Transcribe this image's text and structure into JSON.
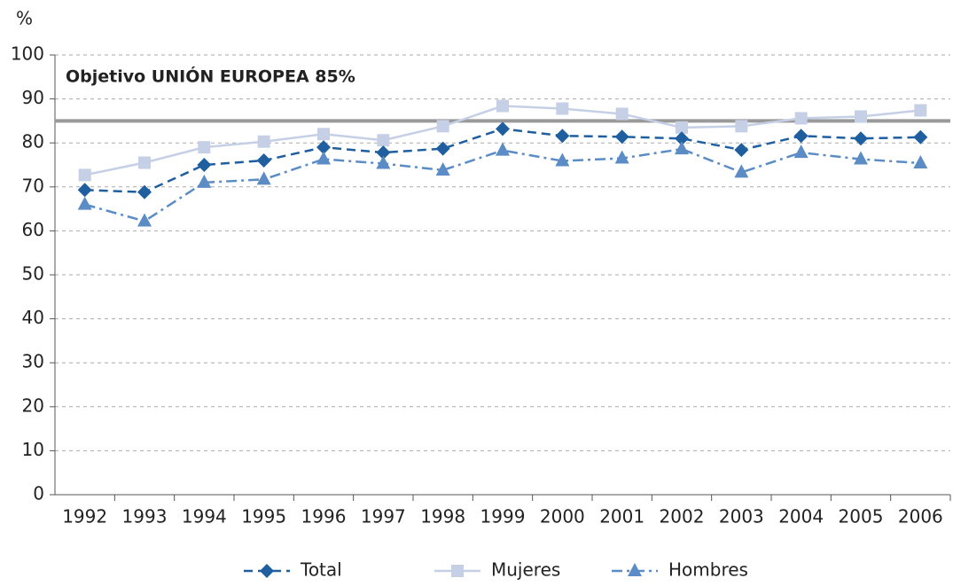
{
  "chart_data": {
    "type": "line",
    "y_label": "%",
    "categories": [
      "1992",
      "1993",
      "1994",
      "1995",
      "1996",
      "1997",
      "1998",
      "1999",
      "2000",
      "2001",
      "2002",
      "2003",
      "2004",
      "2005",
      "2006"
    ],
    "series": [
      {
        "name": "Total",
        "color": "#1f5fa0",
        "marker": "diamond",
        "dash": "10,6",
        "values": [
          69.3,
          68.8,
          75.0,
          76.0,
          79.0,
          77.8,
          78.7,
          83.2,
          81.6,
          81.4,
          81.0,
          78.4,
          81.6,
          81.0,
          81.3
        ]
      },
      {
        "name": "Mujeres",
        "color": "#c5d0e6",
        "marker": "square",
        "dash": "none",
        "values": [
          72.7,
          75.5,
          79.0,
          80.3,
          82.0,
          80.6,
          83.8,
          88.4,
          87.8,
          86.6,
          83.5,
          83.8,
          85.6,
          86.0,
          87.4
        ]
      },
      {
        "name": "Hombres",
        "color": "#5b8cc5",
        "marker": "triangle",
        "dash": "12,5,3,5",
        "values": [
          66.0,
          62.2,
          71.0,
          71.7,
          76.3,
          75.3,
          73.8,
          78.3,
          75.9,
          76.5,
          78.6,
          73.3,
          77.8,
          76.3,
          75.4
        ]
      }
    ],
    "reference": {
      "value": 85,
      "label": "Objetivo UNIÓN EUROPEA 85%",
      "color": "#999999"
    },
    "ylim": [
      0,
      100
    ],
    "yticks": [
      0,
      10,
      20,
      30,
      40,
      50,
      60,
      70,
      80,
      90,
      100
    ],
    "grid": true,
    "legend": "bottom"
  }
}
